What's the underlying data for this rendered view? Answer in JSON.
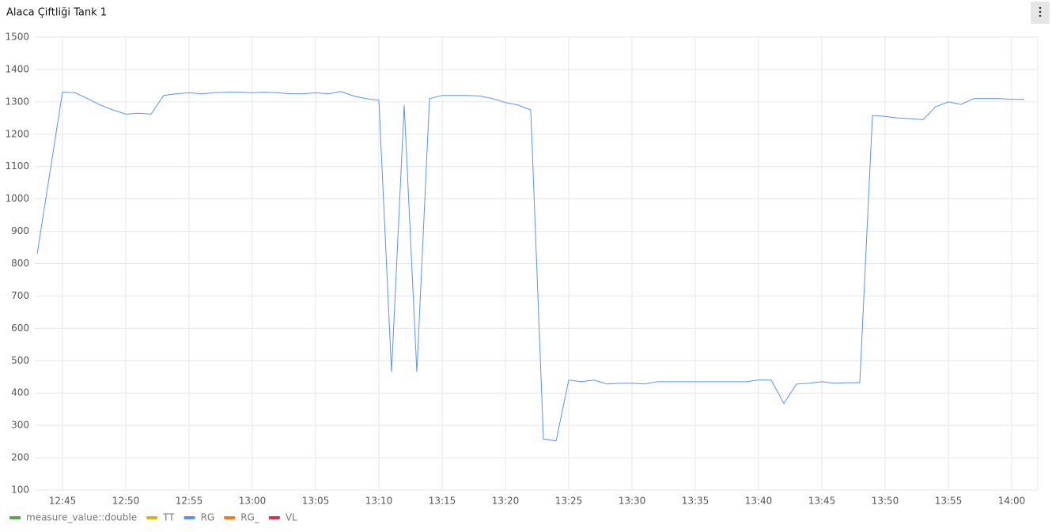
{
  "chart_data": {
    "type": "line",
    "title": "Alaca Çiftliği Tank 1",
    "x": [
      "12:43",
      "12:44",
      "12:45",
      "12:46",
      "12:47",
      "12:48",
      "12:49",
      "12:50",
      "12:51",
      "12:52",
      "12:53",
      "12:54",
      "12:55",
      "12:56",
      "12:57",
      "12:58",
      "12:59",
      "13:00",
      "13:01",
      "13:02",
      "13:03",
      "13:04",
      "13:05",
      "13:06",
      "13:07",
      "13:08",
      "13:09",
      "13:10",
      "13:11",
      "13:12",
      "13:13",
      "13:14",
      "13:15",
      "13:16",
      "13:17",
      "13:18",
      "13:19",
      "13:20",
      "13:21",
      "13:22",
      "13:23",
      "13:24",
      "13:25",
      "13:26",
      "13:27",
      "13:28",
      "13:29",
      "13:30",
      "13:31",
      "13:32",
      "13:33",
      "13:34",
      "13:35",
      "13:36",
      "13:37",
      "13:38",
      "13:39",
      "13:40",
      "13:41",
      "13:42",
      "13:43",
      "13:44",
      "13:45",
      "13:46",
      "13:47",
      "13:48",
      "13:49",
      "13:50",
      "13:51",
      "13:52",
      "13:53",
      "13:54",
      "13:55",
      "13:56",
      "13:57",
      "13:58",
      "13:59",
      "14:00",
      "14:01"
    ],
    "series": [
      {
        "name": "measure_value::double",
        "color": "#56a64b"
      },
      {
        "name": "TT",
        "color": "#e0b400"
      },
      {
        "name": "RG",
        "color": "#5794f2",
        "values": [
          830,
          1080,
          1330,
          1328,
          1310,
          1290,
          1275,
          1262,
          1265,
          1262,
          1320,
          1325,
          1328,
          1325,
          1328,
          1330,
          1330,
          1328,
          1330,
          1328,
          1325,
          1325,
          1328,
          1325,
          1332,
          1318,
          1310,
          1305,
          465,
          1290,
          465,
          1310,
          1320,
          1320,
          1320,
          1318,
          1310,
          1298,
          1290,
          1275,
          258,
          252,
          440,
          435,
          440,
          428,
          430,
          430,
          428,
          435,
          435,
          435,
          435,
          435,
          435,
          435,
          435,
          440,
          440,
          368,
          428,
          430,
          435,
          430,
          432,
          432,
          1258,
          1255,
          1250,
          1248,
          1245,
          1285,
          1300,
          1292,
          1310,
          1310,
          1310,
          1308,
          1308
        ]
      },
      {
        "name": "RG_",
        "color": "#ff780a"
      },
      {
        "name": "VL",
        "color": "#e02f44"
      }
    ],
    "xlim": [
      "12:43",
      "14:01"
    ],
    "xticks": [
      "12:45",
      "12:50",
      "12:55",
      "13:00",
      "13:05",
      "13:10",
      "13:15",
      "13:20",
      "13:25",
      "13:30",
      "13:35",
      "13:40",
      "13:45",
      "13:50",
      "13:55",
      "14:00"
    ],
    "ylim": [
      100,
      1500
    ],
    "yticks": [
      100,
      200,
      300,
      400,
      500,
      600,
      700,
      800,
      900,
      1000,
      1100,
      1200,
      1300,
      1400,
      1500
    ],
    "grid": true
  }
}
